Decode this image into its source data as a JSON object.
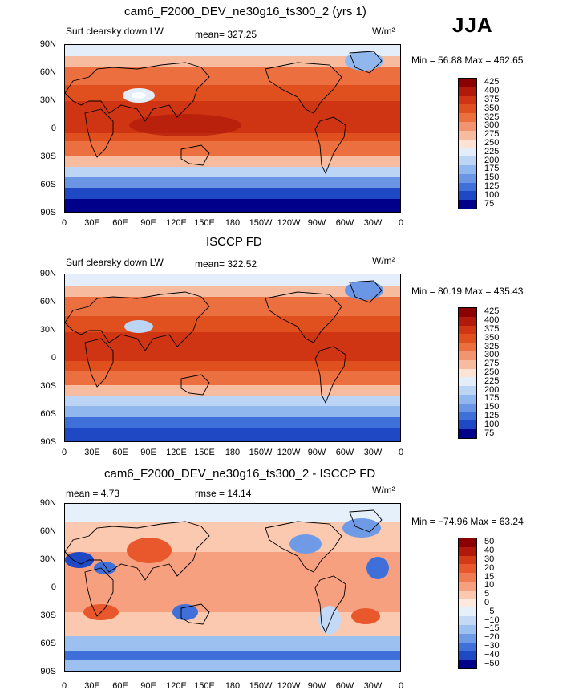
{
  "season": "JJA",
  "units": "W/m²",
  "lat_labels": [
    "90N",
    "60N",
    "30N",
    "0",
    "30S",
    "60S",
    "90S"
  ],
  "lon_labels": [
    "0",
    "30E",
    "60E",
    "90E",
    "120E",
    "150E",
    "180",
    "150W",
    "120W",
    "90W",
    "60W",
    "30W",
    "0"
  ],
  "panels": [
    {
      "title": "cam6_F2000_DEV_ne30g16_ts300_2 (yrs 1)",
      "left_label": "Surf clearsky down LW",
      "center_label": "mean=  327.25",
      "minmax": "Min =   56.88  Max =  462.65",
      "colorbar": [
        "425",
        "400",
        "375",
        "350",
        "325",
        "300",
        "275",
        "250",
        "225",
        "200",
        "175",
        "150",
        "125",
        "100",
        "75"
      ]
    },
    {
      "title": "ISCCP FD",
      "left_label": "Surf clearsky down LW",
      "center_label": "mean=  322.52",
      "minmax": "Min =   80.19  Max =  435.43",
      "colorbar": [
        "425",
        "400",
        "375",
        "350",
        "325",
        "300",
        "275",
        "250",
        "225",
        "200",
        "175",
        "150",
        "125",
        "100",
        "75"
      ]
    },
    {
      "title": "cam6_F2000_DEV_ne30g16_ts300_2 - ISCCP FD",
      "left_label": "mean =     4.73",
      "center_label": "rmse =    14.14",
      "minmax": "Min = −74.96  Max =    63.24",
      "colorbar": [
        "50",
        "40",
        "30",
        "20",
        "15",
        "10",
        "5",
        "0",
        "−5",
        "−10",
        "−15",
        "−20",
        "−30",
        "−40",
        "−50"
      ]
    }
  ],
  "colors": {
    "abs_scale": [
      "#8b0000",
      "#b11a0a",
      "#cf3512",
      "#e0501e",
      "#ec6f3f",
      "#f29470",
      "#f7bba0",
      "#fce3d4",
      "#e3eefa",
      "#bcd5f5",
      "#90b8ef",
      "#6b96e6",
      "#3f6fd9",
      "#1f48c4",
      "#00008b"
    ],
    "diff_scale": [
      "#8b0000",
      "#b11a0a",
      "#d33a16",
      "#e8582c",
      "#f07a52",
      "#f6a07f",
      "#fbc8b0",
      "#fde9dd",
      "#e6f0fb",
      "#c3d9f5",
      "#9cc0f0",
      "#6f9ae6",
      "#3f6fd9",
      "#1f48c4",
      "#00008b"
    ],
    "land_outline": "#000000"
  }
}
